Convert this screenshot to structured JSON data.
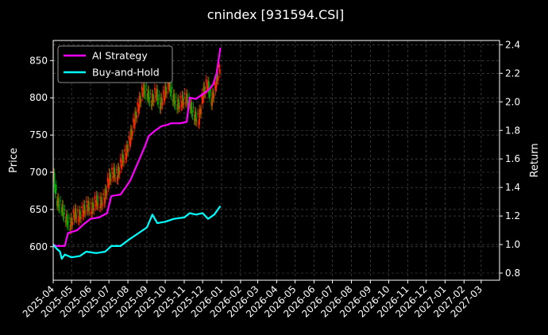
{
  "chart_data": {
    "type": "line",
    "title": "cnindex [931594.CSI]",
    "xlabel": "",
    "ylabel_left": "Price",
    "ylabel_right": "Return",
    "x_ticks": [
      "2025-04",
      "2025-05",
      "2025-06",
      "2025-07",
      "2025-08",
      "2025-09",
      "2025-10",
      "2025-11",
      "2025-12",
      "2026-01",
      "2026-02",
      "2026-03",
      "2026-04",
      "2026-05",
      "2026-06",
      "2026-07",
      "2026-08",
      "2026-09",
      "2026-10",
      "2026-11",
      "2026-12",
      "2027-01",
      "2027-02",
      "2027-03"
    ],
    "xlim": [
      "2025-04-01",
      "2027-03-31"
    ],
    "ylim_left": [
      555,
      877
    ],
    "yticks_left": [
      600,
      650,
      700,
      750,
      800,
      850
    ],
    "ylim_right": [
      0.75,
      2.43
    ],
    "yticks_right": [
      0.8,
      1.0,
      1.2,
      1.4,
      1.6,
      1.8,
      2.0,
      2.2,
      2.4
    ],
    "grid": true,
    "legend_position": "top-left",
    "colors": {
      "up": "#ff2a00",
      "down": "#00b000",
      "strategy": "#ff00ff",
      "buyhold": "#00ffff",
      "grid": "#555555",
      "background": "#000000"
    },
    "price_close": [
      {
        "date": "2025-04-01",
        "value": 700
      },
      {
        "date": "2025-04-08",
        "value": 660
      },
      {
        "date": "2025-04-15",
        "value": 652
      },
      {
        "date": "2025-04-22",
        "value": 638
      },
      {
        "date": "2025-04-29",
        "value": 628
      },
      {
        "date": "2025-05-06",
        "value": 645
      },
      {
        "date": "2025-05-13",
        "value": 640
      },
      {
        "date": "2025-05-20",
        "value": 648
      },
      {
        "date": "2025-05-27",
        "value": 655
      },
      {
        "date": "2025-06-03",
        "value": 650
      },
      {
        "date": "2025-06-10",
        "value": 662
      },
      {
        "date": "2025-06-17",
        "value": 658
      },
      {
        "date": "2025-06-24",
        "value": 665
      },
      {
        "date": "2025-07-01",
        "value": 690
      },
      {
        "date": "2025-07-08",
        "value": 700
      },
      {
        "date": "2025-07-15",
        "value": 695
      },
      {
        "date": "2025-07-22",
        "value": 715
      },
      {
        "date": "2025-07-29",
        "value": 725
      },
      {
        "date": "2025-08-05",
        "value": 745
      },
      {
        "date": "2025-08-12",
        "value": 770
      },
      {
        "date": "2025-08-19",
        "value": 790
      },
      {
        "date": "2025-08-26",
        "value": 812
      },
      {
        "date": "2025-09-02",
        "value": 805
      },
      {
        "date": "2025-09-09",
        "value": 795
      },
      {
        "date": "2025-09-16",
        "value": 808
      },
      {
        "date": "2025-09-23",
        "value": 790
      },
      {
        "date": "2025-09-30",
        "value": 805
      },
      {
        "date": "2025-10-07",
        "value": 820
      },
      {
        "date": "2025-10-14",
        "value": 800
      },
      {
        "date": "2025-10-21",
        "value": 790
      },
      {
        "date": "2025-10-28",
        "value": 795
      },
      {
        "date": "2025-11-04",
        "value": 800
      },
      {
        "date": "2025-11-11",
        "value": 790
      },
      {
        "date": "2025-11-18",
        "value": 775
      },
      {
        "date": "2025-11-25",
        "value": 770
      },
      {
        "date": "2025-12-02",
        "value": 805
      },
      {
        "date": "2025-12-09",
        "value": 820
      },
      {
        "date": "2025-12-16",
        "value": 795
      },
      {
        "date": "2025-12-23",
        "value": 820
      },
      {
        "date": "2025-12-30",
        "value": 843
      }
    ],
    "series": [
      {
        "name": "AI Strategy",
        "color": "#ff00ff",
        "points": [
          {
            "date": "2025-04-01",
            "value": 1.0
          },
          {
            "date": "2025-04-06",
            "value": 0.99
          },
          {
            "date": "2025-04-20",
            "value": 0.99
          },
          {
            "date": "2025-04-25",
            "value": 1.08
          },
          {
            "date": "2025-05-10",
            "value": 1.1
          },
          {
            "date": "2025-05-20",
            "value": 1.14
          },
          {
            "date": "2025-06-01",
            "value": 1.18
          },
          {
            "date": "2025-06-15",
            "value": 1.19
          },
          {
            "date": "2025-06-28",
            "value": 1.22
          },
          {
            "date": "2025-07-05",
            "value": 1.34
          },
          {
            "date": "2025-07-20",
            "value": 1.35
          },
          {
            "date": "2025-07-28",
            "value": 1.4
          },
          {
            "date": "2025-08-05",
            "value": 1.45
          },
          {
            "date": "2025-08-12",
            "value": 1.52
          },
          {
            "date": "2025-08-20",
            "value": 1.6
          },
          {
            "date": "2025-08-28",
            "value": 1.68
          },
          {
            "date": "2025-09-04",
            "value": 1.76
          },
          {
            "date": "2025-09-15",
            "value": 1.8
          },
          {
            "date": "2025-09-25",
            "value": 1.83
          },
          {
            "date": "2025-10-05",
            "value": 1.84
          },
          {
            "date": "2025-10-10",
            "value": 1.85
          },
          {
            "date": "2025-10-25",
            "value": 1.85
          },
          {
            "date": "2025-11-05",
            "value": 1.86
          },
          {
            "date": "2025-11-10",
            "value": 2.03
          },
          {
            "date": "2025-11-20",
            "value": 2.02
          },
          {
            "date": "2025-11-30",
            "value": 2.05
          },
          {
            "date": "2025-12-10",
            "value": 2.08
          },
          {
            "date": "2025-12-18",
            "value": 2.12
          },
          {
            "date": "2025-12-24",
            "value": 2.2
          },
          {
            "date": "2025-12-30",
            "value": 2.38
          }
        ]
      },
      {
        "name": "Buy-and-Hold",
        "color": "#00ffff",
        "points": [
          {
            "date": "2025-04-01",
            "value": 1.0
          },
          {
            "date": "2025-04-07",
            "value": 0.97
          },
          {
            "date": "2025-04-12",
            "value": 0.95
          },
          {
            "date": "2025-04-15",
            "value": 0.9
          },
          {
            "date": "2025-04-20",
            "value": 0.93
          },
          {
            "date": "2025-05-01",
            "value": 0.91
          },
          {
            "date": "2025-05-15",
            "value": 0.92
          },
          {
            "date": "2025-05-25",
            "value": 0.95
          },
          {
            "date": "2025-06-10",
            "value": 0.94
          },
          {
            "date": "2025-06-25",
            "value": 0.95
          },
          {
            "date": "2025-07-05",
            "value": 0.99
          },
          {
            "date": "2025-07-20",
            "value": 0.99
          },
          {
            "date": "2025-08-01",
            "value": 1.03
          },
          {
            "date": "2025-08-15",
            "value": 1.07
          },
          {
            "date": "2025-09-01",
            "value": 1.12
          },
          {
            "date": "2025-09-10",
            "value": 1.21
          },
          {
            "date": "2025-09-18",
            "value": 1.15
          },
          {
            "date": "2025-10-01",
            "value": 1.16
          },
          {
            "date": "2025-10-15",
            "value": 1.18
          },
          {
            "date": "2025-11-01",
            "value": 1.19
          },
          {
            "date": "2025-11-10",
            "value": 1.22
          },
          {
            "date": "2025-11-20",
            "value": 1.21
          },
          {
            "date": "2025-12-01",
            "value": 1.22
          },
          {
            "date": "2025-12-10",
            "value": 1.18
          },
          {
            "date": "2025-12-20",
            "value": 1.21
          },
          {
            "date": "2025-12-30",
            "value": 1.27
          }
        ]
      }
    ]
  }
}
